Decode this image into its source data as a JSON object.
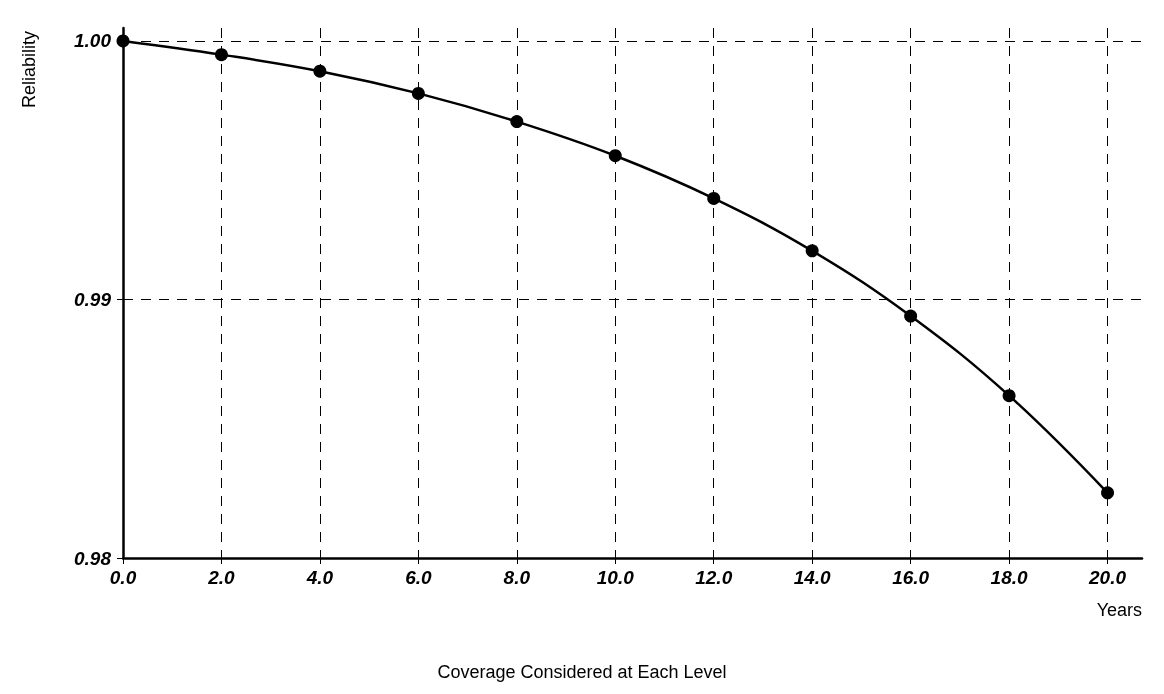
{
  "chart_data": {
    "type": "line",
    "xlabel": "Years",
    "ylabel": "Reliability",
    "annotations": [
      "Coverage Considered at Each Level"
    ],
    "x": [
      0,
      2,
      4,
      6,
      8,
      10,
      12,
      14,
      16,
      18,
      20
    ],
    "series": [
      {
        "color": "#000000",
        "values": [
          1.0,
          0.99947,
          0.99883,
          0.99797,
          0.99688,
          0.99556,
          0.99391,
          0.99188,
          0.98936,
          0.98628,
          0.98252
        ]
      }
    ],
    "xlim": [
      0,
      20.7
    ],
    "xticks": [
      {
        "value": 0,
        "label": "0.0"
      },
      {
        "value": 2,
        "label": "2.0"
      },
      {
        "value": 4,
        "label": "4.0"
      },
      {
        "value": 6,
        "label": "6.0"
      },
      {
        "value": 8,
        "label": "8.0"
      },
      {
        "value": 10,
        "label": "10.0"
      },
      {
        "value": 12,
        "label": "12.0"
      },
      {
        "value": 14,
        "label": "14.0"
      },
      {
        "value": 16,
        "label": "16.0"
      },
      {
        "value": 18,
        "label": "18.0"
      },
      {
        "value": 20,
        "label": "20.0"
      }
    ],
    "ylim": [
      0.98,
      1.0005
    ],
    "yticks": [
      0.98,
      0.99,
      {
        "value": 1,
        "label": "1.00"
      }
    ],
    "grid": true,
    "marker": "circle",
    "line_style": "solid"
  }
}
